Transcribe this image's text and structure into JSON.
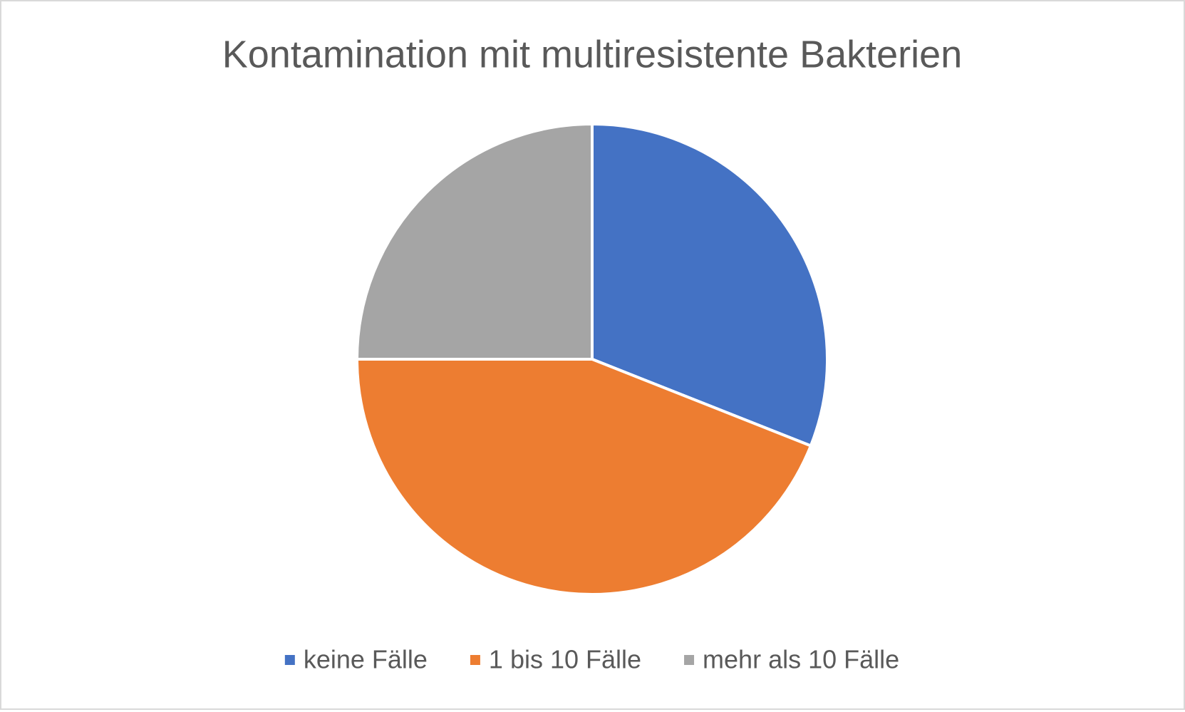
{
  "chart_data": {
    "type": "pie",
    "title": "Kontamination mit multiresistente Bakterien",
    "categories": [
      "keine Fälle",
      "1 bis 10 Fälle",
      "mehr als 10 Fälle"
    ],
    "values": [
      31,
      44,
      25
    ],
    "colors": [
      "#4472c4",
      "#ed7d31",
      "#a5a5a5"
    ],
    "legend": "bottom"
  }
}
